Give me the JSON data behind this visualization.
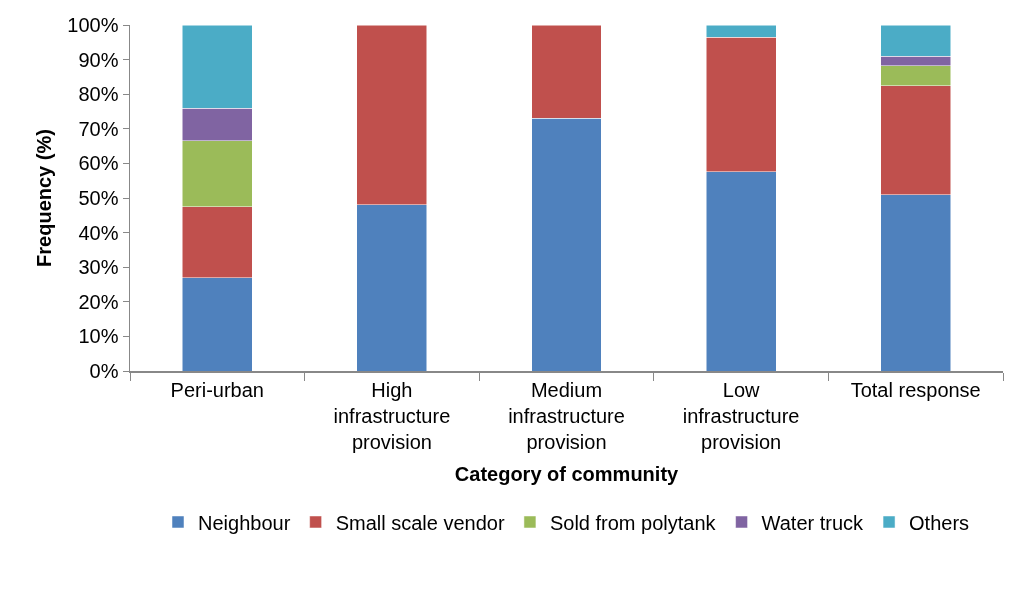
{
  "chart_data": {
    "type": "bar",
    "stacked": true,
    "xlabel": "Category of community",
    "ylabel": "Frequency (%)",
    "categories": [
      "Peri-urban",
      "High infrastructure provision",
      "Medium infrastructure provision",
      "Low infrastructure provision",
      "Total response"
    ],
    "series": [
      {
        "name": "Neighbour",
        "color": "#4f81bd",
        "values": [
          27,
          48,
          73,
          57.6,
          51
        ]
      },
      {
        "name": "Small scale vendor",
        "color": "#c0504d",
        "values": [
          20.5,
          52,
          27,
          38.9,
          31.4
        ]
      },
      {
        "name": "Sold from polytank",
        "color": "#9bbb59",
        "values": [
          19,
          null,
          null,
          null,
          5.8
        ]
      },
      {
        "name": "Water truck",
        "color": "#8064a2",
        "values": [
          9.5,
          null,
          null,
          null,
          2.8
        ]
      },
      {
        "name": "Others",
        "color": "#4bacc6",
        "values": [
          24,
          null,
          null,
          3.5,
          9
        ]
      }
    ],
    "ylim": [
      0,
      100
    ],
    "yticks": [
      {
        "value": 0,
        "label": "0%"
      },
      {
        "value": 10,
        "label": "10%"
      },
      {
        "value": 20,
        "label": "20%"
      },
      {
        "value": 30,
        "label": "30%"
      },
      {
        "value": 40,
        "label": "40%"
      },
      {
        "value": 50,
        "label": "50%"
      },
      {
        "value": 60,
        "label": "60%"
      },
      {
        "value": 70,
        "label": "70%"
      },
      {
        "value": 80,
        "label": "80%"
      },
      {
        "value": 90,
        "label": "90%"
      },
      {
        "value": 100,
        "label": "100%"
      }
    ],
    "grid": false,
    "legend": "bottom"
  }
}
